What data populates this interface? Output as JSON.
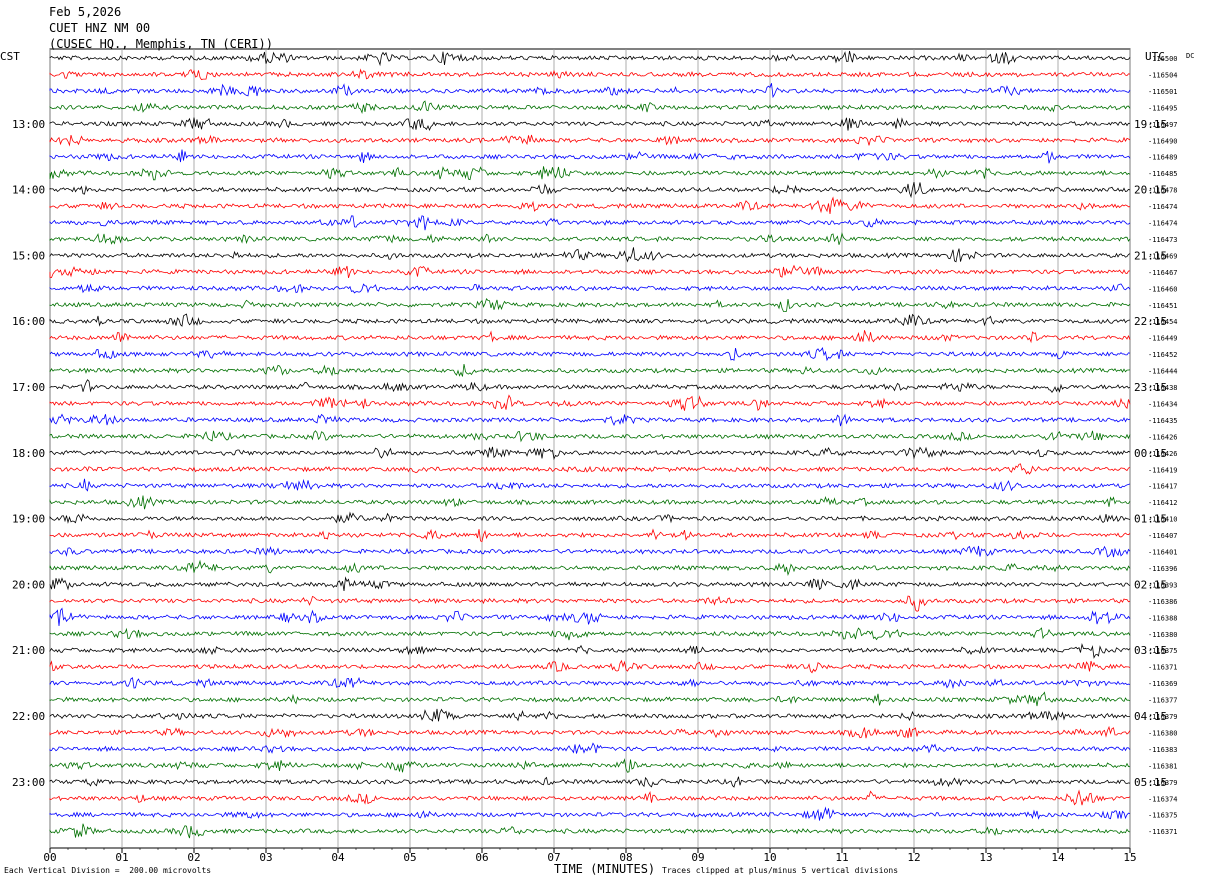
{
  "header": {
    "date": "Feb 5,2026",
    "station": "CUET HNZ NM 00",
    "location": "(CUSEC HQ., Memphis, TN (CERI))"
  },
  "chart_data": {
    "type": "line",
    "title": "",
    "xlabel": "TIME (MINUTES)",
    "ylabel_left": "CST",
    "ylabel_right": "UTC",
    "dc_label": "DC",
    "xlim": [
      0,
      15
    ],
    "x_ticks": [
      "00",
      "01",
      "02",
      "03",
      "04",
      "05",
      "06",
      "07",
      "08",
      "09",
      "10",
      "11",
      "12",
      "13",
      "14",
      "15"
    ],
    "left_time_labels": [
      "13:00",
      "14:00",
      "15:00",
      "16:00",
      "17:00",
      "18:00",
      "19:00",
      "20:00",
      "21:00",
      "22:00",
      "23:00"
    ],
    "right_time_labels": [
      "19:15",
      "20:15",
      "21:15",
      "22:15",
      "23:15",
      "00:15",
      "01:15",
      "02:15",
      "03:15",
      "04:15",
      "05:15"
    ],
    "trace_colors": [
      "#000000",
      "#ff0000",
      "#0000ff",
      "#007000"
    ],
    "dc_offsets": [
      "-116500",
      "-116504",
      "-116501",
      "-116495",
      "-116497",
      "-116490",
      "-116489",
      "-116485",
      "-116478",
      "-116474",
      "-116474",
      "-116473",
      "-116469",
      "-116467",
      "-116460",
      "-116451",
      "-116454",
      "-116449",
      "-116452",
      "-116444",
      "-116438",
      "-116434",
      "-116435",
      "-116426",
      "-116426",
      "-116419",
      "-116417",
      "-116412",
      "-116410",
      "-116407",
      "-116401",
      "-116396",
      "-116393",
      "-116386",
      "-116388",
      "-116380",
      "-116375",
      "-116371",
      "-116369",
      "-116377",
      "-116379",
      "-116380",
      "-116383",
      "-116381",
      "-116379",
      "-116374",
      "-116375",
      "-116371"
    ],
    "grid": true
  },
  "footer": {
    "scale": "Each Vertical Division =  200.00 microvolts",
    "clip_note": "Traces clipped at plus/minus 5 vertical divisions"
  }
}
